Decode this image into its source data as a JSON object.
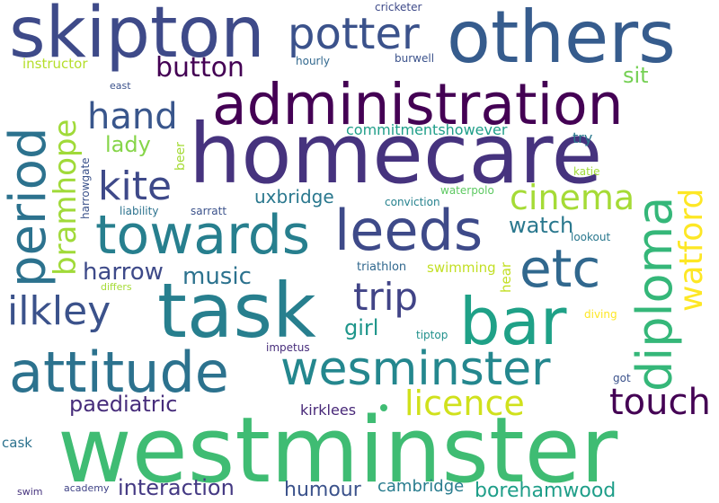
{
  "words": [
    {
      "text": "westminster",
      "color": "#3fbc73"
    },
    {
      "text": "homecare",
      "color": "#46337e"
    },
    {
      "text": "task",
      "color": "#277f8e"
    },
    {
      "text": "others",
      "color": "#365c8d"
    },
    {
      "text": "skipton",
      "color": "#3e4a89"
    },
    {
      "text": "administration",
      "color": "#440154"
    },
    {
      "text": "bar",
      "color": "#1fa187"
    },
    {
      "text": "attitude",
      "color": "#2c728e"
    },
    {
      "text": "wesminster",
      "color": "#24878e"
    },
    {
      "text": "towards",
      "color": "#277f8e"
    },
    {
      "text": "leeds",
      "color": "#3e4a89"
    },
    {
      "text": "period",
      "color": "#2c728e"
    },
    {
      "text": "etc",
      "color": "#31688e"
    },
    {
      "text": "diploma",
      "color": "#35b779"
    },
    {
      "text": "potter",
      "color": "#3b528b"
    },
    {
      "text": "watford",
      "color": "#fde725"
    },
    {
      "text": "bramhope",
      "color": "#a0da39"
    },
    {
      "text": "hand",
      "color": "#39568c"
    },
    {
      "text": "kite",
      "color": "#3e4989"
    },
    {
      "text": "cinema",
      "color": "#a5db36"
    },
    {
      "text": "trip",
      "color": "#414487"
    },
    {
      "text": "ilkley",
      "color": "#3b528b"
    },
    {
      "text": "licence",
      "color": "#d0e11c"
    },
    {
      "text": "touch",
      "color": "#440154"
    },
    {
      "text": "button",
      "color": "#440154"
    },
    {
      "text": "harrow",
      "color": "#3e4a89"
    },
    {
      "text": "music",
      "color": "#2c728e"
    },
    {
      "text": "paediatric",
      "color": "#472d7b"
    },
    {
      "text": "interaction",
      "color": "#443983"
    },
    {
      "text": "humour",
      "color": "#3b528b"
    },
    {
      "text": "borehamwood",
      "color": "#1f9e89"
    },
    {
      "text": "watch",
      "color": "#2a788e"
    },
    {
      "text": "girl",
      "color": "#1f968b"
    },
    {
      "text": "lady",
      "color": "#86d549"
    },
    {
      "text": "uxbridge",
      "color": "#2a788e"
    },
    {
      "text": "sit",
      "color": "#75d054"
    },
    {
      "text": "cambridge",
      "color": "#287c8e"
    },
    {
      "text": "kirklees",
      "color": "#482878"
    },
    {
      "text": "commitmentshowever",
      "color": "#1f9e89"
    },
    {
      "text": "instructor",
      "color": "#b5de2b"
    },
    {
      "text": "try",
      "color": "#2a788e"
    },
    {
      "text": "swimming",
      "color": "#c2df23"
    },
    {
      "text": "triathlon",
      "color": "#31688e"
    },
    {
      "text": "hear",
      "color": "#c2df23"
    },
    {
      "text": "cask",
      "color": "#2c728e"
    },
    {
      "text": "beer",
      "color": "#a5db36"
    },
    {
      "text": "harrowgate",
      "color": "#3b528b"
    },
    {
      "text": "liability",
      "color": "#2c728e"
    },
    {
      "text": "sarratt",
      "color": "#3b528b"
    },
    {
      "text": "conviction",
      "color": "#26828e"
    },
    {
      "text": "waterpolo",
      "color": "#5ec962"
    },
    {
      "text": "lookout",
      "color": "#2a788e"
    },
    {
      "text": "katie",
      "color": "#a0da39"
    },
    {
      "text": "diving",
      "color": "#fde725"
    },
    {
      "text": "tiptop",
      "color": "#21918c"
    },
    {
      "text": "impetus",
      "color": "#472d7b"
    },
    {
      "text": "got",
      "color": "#3b528b"
    },
    {
      "text": "differs",
      "color": "#a5db36"
    },
    {
      "text": "academy",
      "color": "#414487"
    },
    {
      "text": "swim",
      "color": "#46337e"
    },
    {
      "text": "cricketer",
      "color": "#3e4a89"
    },
    {
      "text": "hourly",
      "color": "#31688e"
    },
    {
      "text": "burwell",
      "color": "#3b528b"
    },
    {
      "text": "east",
      "color": "#3b528b"
    }
  ]
}
